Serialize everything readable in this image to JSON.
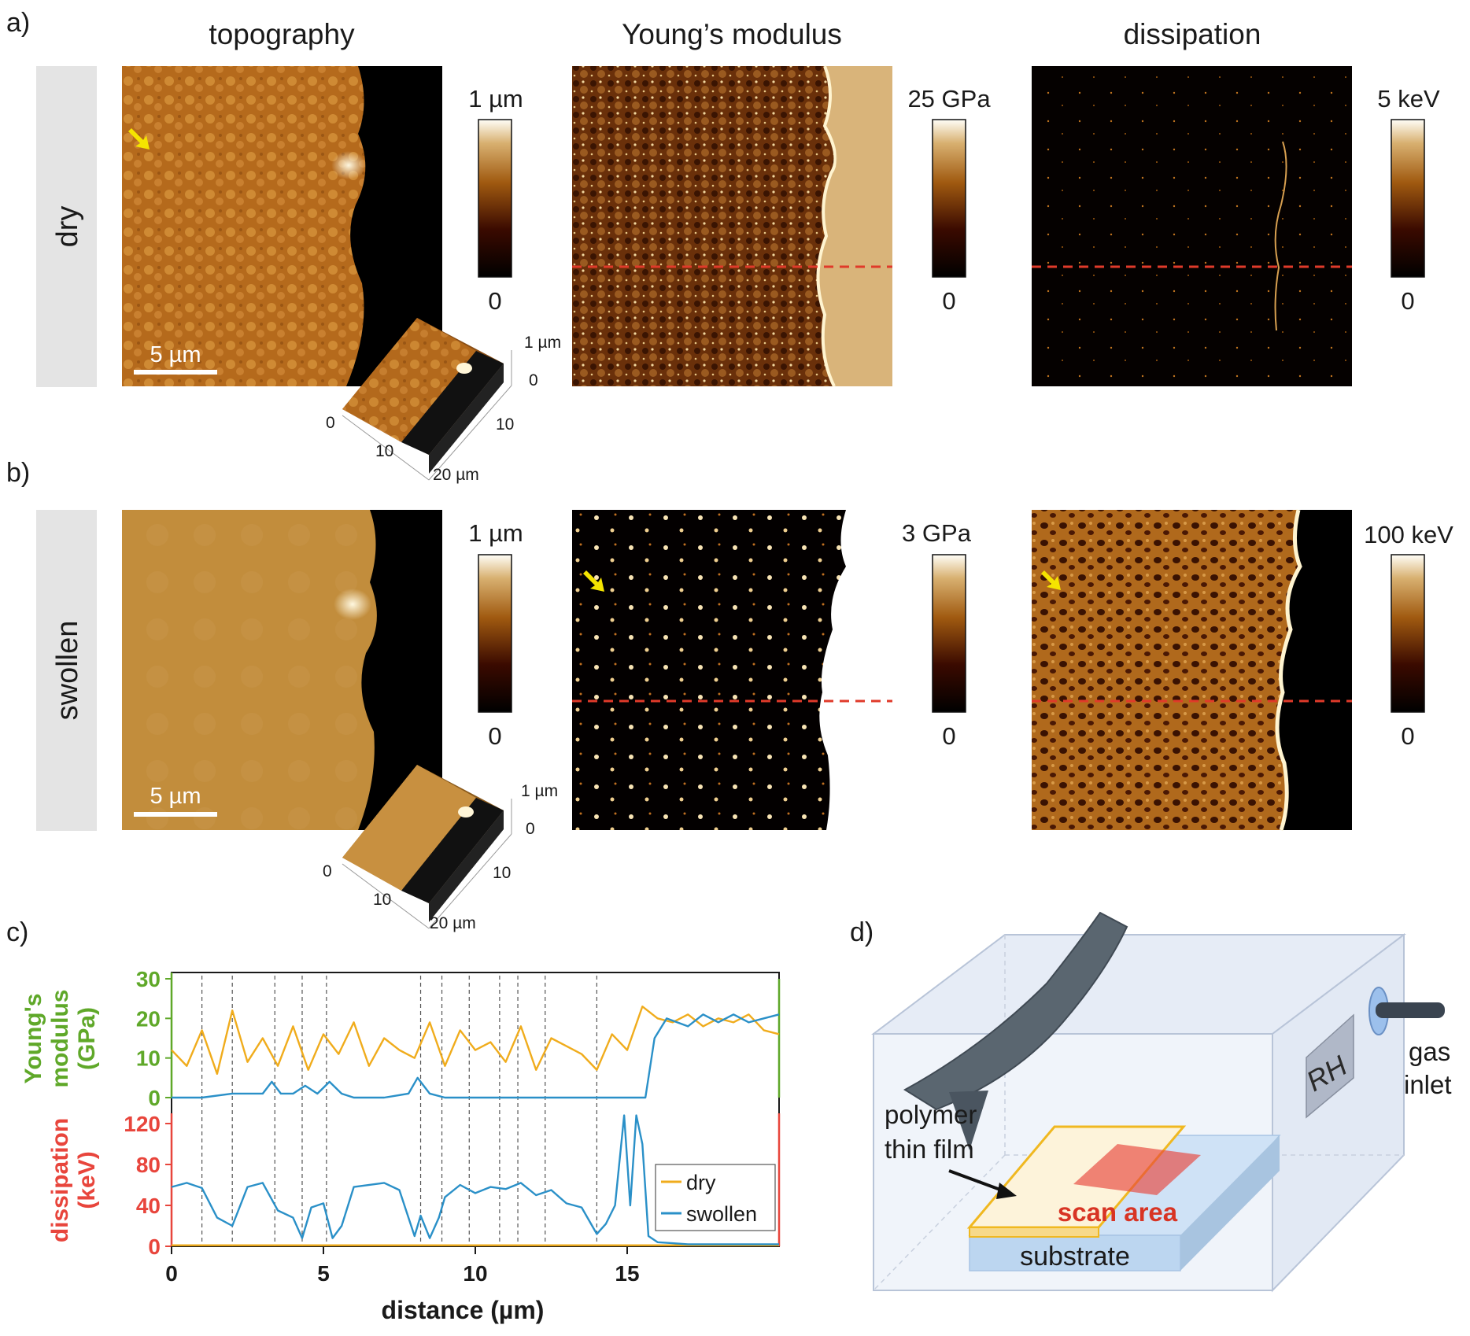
{
  "panel_labels": {
    "a": "a)",
    "b": "b)",
    "c": "c)",
    "d": "d)"
  },
  "columns": {
    "topography": "topography",
    "modulus": "Young’s modulus",
    "dissipation": "dissipation"
  },
  "rows": {
    "dry": "dry",
    "swollen": "swollen"
  },
  "scalebar": {
    "dry": "5 µm",
    "swollen": "5 µm"
  },
  "colorbars": {
    "dry_topo": {
      "max": "1 µm",
      "min": "0"
    },
    "dry_mod": {
      "max": "25 GPa",
      "min": "0"
    },
    "dry_diss": {
      "max": "5 keV",
      "min": "0"
    },
    "sw_topo": {
      "max": "1 µm",
      "min": "0"
    },
    "sw_mod": {
      "max": "3 GPa",
      "min": "0"
    },
    "sw_diss": {
      "max": "100 keV",
      "min": "0"
    }
  },
  "inset3d": {
    "dry": {
      "z_top": "1 µm",
      "z_bot": "0",
      "x0": "0",
      "x10": "10",
      "x20": "20 µm",
      "y10": "10"
    },
    "swollen": {
      "z_top": "1 µm",
      "z_bot": "0",
      "x0": "0",
      "x10": "10",
      "x20": "20 µm",
      "y10": "10"
    }
  },
  "colors": {
    "afm_orange": "#b06a1a",
    "dry_line": "#f0ac1c",
    "swollen_line": "#2a90c8",
    "modulus_axis": "#5fa829",
    "dissipation_axis": "#e8453c",
    "guide_red": "#e03a2a",
    "arrow_yellow": "#f5e400"
  },
  "chart_data": [
    {
      "type": "line",
      "title": "",
      "xlabel": "distance (µm)",
      "ylabel": "Young's modulus (GPa)",
      "xlim": [
        0,
        20
      ],
      "ylim": [
        0,
        30
      ],
      "xticks": [
        "0",
        "5",
        "10",
        "15"
      ],
      "yticks": [
        "0",
        "10",
        "20",
        "30"
      ],
      "series": [
        {
          "name": "dry",
          "x": [
            0,
            0.5,
            1,
            1.5,
            2,
            2.5,
            3,
            3.5,
            4,
            4.5,
            5,
            5.5,
            6,
            6.5,
            7,
            7.5,
            8,
            8.5,
            9,
            9.5,
            10,
            10.5,
            11,
            11.5,
            12,
            12.5,
            13,
            13.5,
            14,
            14.5,
            15,
            15.5,
            16,
            16.5,
            17,
            17.5,
            18,
            18.5,
            19,
            19.5,
            20
          ],
          "values": [
            12,
            8,
            17,
            6,
            22,
            9,
            15,
            8,
            18,
            7,
            16,
            11,
            19,
            8,
            15,
            12,
            10,
            19,
            8,
            17,
            12,
            14,
            9,
            18,
            7,
            15,
            13,
            11,
            7,
            16,
            12,
            23,
            20,
            19,
            21,
            18,
            20,
            19,
            21,
            17,
            16
          ]
        },
        {
          "name": "swollen",
          "x": [
            0,
            1,
            2,
            3,
            3.3,
            3.6,
            4,
            4.4,
            4.8,
            5.2,
            5.6,
            6,
            7,
            7.8,
            8.1,
            8.5,
            9,
            10,
            11,
            12,
            13,
            14,
            15,
            15.6,
            15.9,
            16.3,
            17,
            17.5,
            18,
            18.5,
            19,
            19.5,
            20
          ],
          "values": [
            0,
            0,
            1,
            1,
            4,
            1,
            1,
            3,
            1,
            4,
            1,
            0,
            0,
            1,
            5,
            1,
            0,
            0,
            0,
            0,
            0,
            0,
            0,
            0,
            15,
            20,
            18,
            21,
            19,
            21,
            19,
            20,
            21
          ]
        }
      ]
    },
    {
      "type": "line",
      "title": "",
      "xlabel": "distance (µm)",
      "ylabel": "dissipation (keV)",
      "xlim": [
        0,
        20
      ],
      "ylim": [
        0,
        130
      ],
      "yticks": [
        "0",
        "40",
        "80",
        "120"
      ],
      "legend": "bottom-right",
      "series": [
        {
          "name": "dry",
          "x": [
            0,
            20
          ],
          "values": [
            1,
            1
          ]
        },
        {
          "name": "swollen",
          "x": [
            0,
            0.5,
            1,
            1.5,
            2,
            2.5,
            3,
            3.5,
            4,
            4.3,
            4.6,
            5,
            5.3,
            5.6,
            6,
            7,
            7.5,
            8,
            8.2,
            8.5,
            8.8,
            9,
            9.5,
            10,
            10.5,
            11,
            11.5,
            12,
            12.5,
            13,
            13.5,
            14,
            14.3,
            14.6,
            14.9,
            15.1,
            15.3,
            15.5,
            15.7,
            16,
            16.5,
            17,
            18,
            19,
            20
          ],
          "values": [
            58,
            62,
            57,
            28,
            20,
            58,
            62,
            35,
            28,
            8,
            38,
            42,
            8,
            20,
            58,
            62,
            55,
            10,
            30,
            8,
            28,
            48,
            60,
            52,
            58,
            56,
            62,
            50,
            55,
            42,
            38,
            12,
            22,
            40,
            128,
            40,
            128,
            100,
            10,
            4,
            3,
            2,
            2,
            2,
            2
          ]
        }
      ]
    }
  ],
  "chart_guides_x": [
    1,
    2,
    3.4,
    4.3,
    5.1,
    8.2,
    8.9,
    9.8,
    10.8,
    11.4,
    12.3,
    14
  ],
  "chart_text": {
    "ylabel_mod_1": "Young's",
    "ylabel_mod_2": "modulus",
    "ylabel_mod_3": "(GPa)",
    "ylabel_diss_1": "dissipation",
    "ylabel_diss_2": "(keV)",
    "xlabel": "distance (µm)",
    "legend_dry": "dry",
    "legend_swollen": "swollen"
  },
  "schematic": {
    "rh": "RH",
    "gas_1": "gas",
    "gas_2": "inlet",
    "polymer_1": "polymer",
    "polymer_2": "thin film",
    "scan_area": "scan area",
    "substrate": "substrate"
  }
}
